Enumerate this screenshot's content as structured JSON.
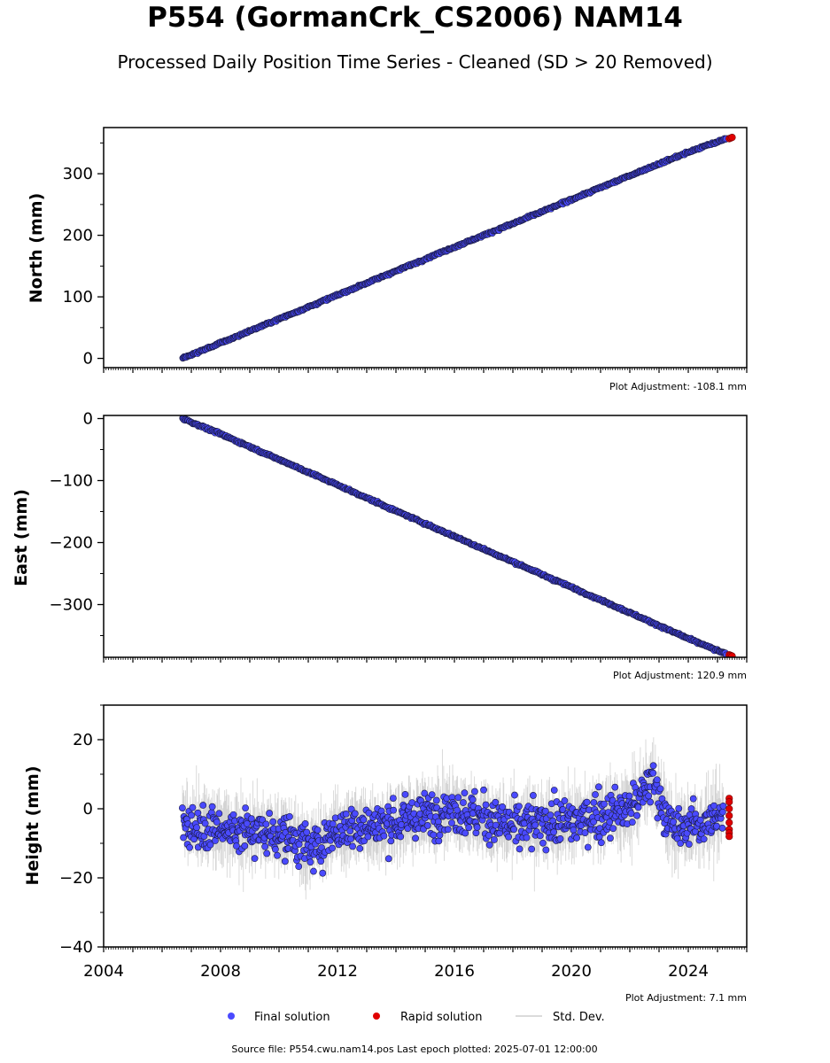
{
  "header": {
    "title": "P554 (GormanCrk_CS2006) NAM14",
    "subtitle": "Processed Daily Position Time Series - Cleaned (SD > 20 Removed)"
  },
  "colors": {
    "final": "#4a4aff",
    "final_edge": "#1a1a40",
    "rapid": "#e00000",
    "stddev": "#bdbdbd"
  },
  "chart_data": [
    {
      "type": "scatter",
      "panel": "north",
      "ylabel": "North (mm)",
      "ylim": [
        -15,
        375
      ],
      "yticks": [
        0,
        100,
        200,
        300
      ],
      "xlim": [
        2004,
        2026
      ],
      "adjustment": "Plot Adjustment: -108.1 mm",
      "series": [
        {
          "name": "Final solution",
          "x": [
            2006.7,
            2008.0,
            2010.0,
            2012.0,
            2014.0,
            2016.0,
            2018.0,
            2020.0,
            2022.0,
            2024.0,
            2025.3
          ],
          "y": [
            0,
            25,
            64,
            103,
            142,
            181,
            219,
            258,
            297,
            335,
            357
          ]
        },
        {
          "name": "Rapid solution",
          "x": [
            2025.4,
            2025.45,
            2025.5
          ],
          "y": [
            357,
            358,
            359
          ]
        }
      ]
    },
    {
      "type": "scatter",
      "panel": "east",
      "ylabel": "East (mm)",
      "ylim": [
        -385,
        5
      ],
      "yticks": [
        0,
        -100,
        -200,
        -300
      ],
      "ytick_labels": [
        "0",
        "−100",
        "−200",
        "−300"
      ],
      "xlim": [
        2004,
        2026
      ],
      "adjustment": "Plot Adjustment: 120.9 mm",
      "series": [
        {
          "name": "Final solution",
          "x": [
            2006.7,
            2008.0,
            2010.0,
            2012.0,
            2014.0,
            2016.0,
            2018.0,
            2020.0,
            2022.0,
            2024.0,
            2025.3
          ],
          "y": [
            0,
            -25,
            -66,
            -107,
            -149,
            -190,
            -231,
            -272,
            -313,
            -355,
            -380
          ]
        },
        {
          "name": "Rapid solution",
          "x": [
            2025.4,
            2025.45,
            2025.5
          ],
          "y": [
            -381,
            -382,
            -383
          ]
        }
      ]
    },
    {
      "type": "scatter",
      "panel": "height",
      "ylabel": "Height (mm)",
      "ylim": [
        -40,
        30
      ],
      "yticks": [
        20,
        0,
        -20,
        -40
      ],
      "ytick_labels": [
        "20",
        "0",
        "−20",
        "−40"
      ],
      "xlim": [
        2004,
        2026
      ],
      "xticks": [
        2004,
        2008,
        2012,
        2016,
        2020,
        2024
      ],
      "adjustment": "Plot Adjustment: 7.1 mm",
      "series": [
        {
          "name": "Final solution",
          "x": [
            2006.7,
            2008.0,
            2010.0,
            2011.2,
            2012.0,
            2014.0,
            2015.8,
            2018.0,
            2020.0,
            2022.0,
            2022.8,
            2023.5,
            2024.0,
            2025.2
          ],
          "y": [
            -4,
            -6,
            -7,
            -12,
            -6,
            -4,
            0,
            -5,
            -4,
            0,
            8,
            -7,
            -5,
            -3
          ]
        },
        {
          "name": "Rapid solution",
          "x": [
            2025.4,
            2025.4,
            2025.4,
            2025.4,
            2025.4,
            2025.4,
            2025.4,
            2025.4
          ],
          "y": [
            3,
            2,
            0,
            -2,
            -4,
            -6,
            -7,
            -8
          ]
        }
      ]
    }
  ],
  "legend": {
    "final": "Final solution",
    "rapid": "Rapid solution",
    "stddev": "Std. Dev."
  },
  "footer": {
    "source": "Source file: P554.cwu.nam14.pos  Last epoch plotted: 2025-07-01 12:00:00"
  }
}
